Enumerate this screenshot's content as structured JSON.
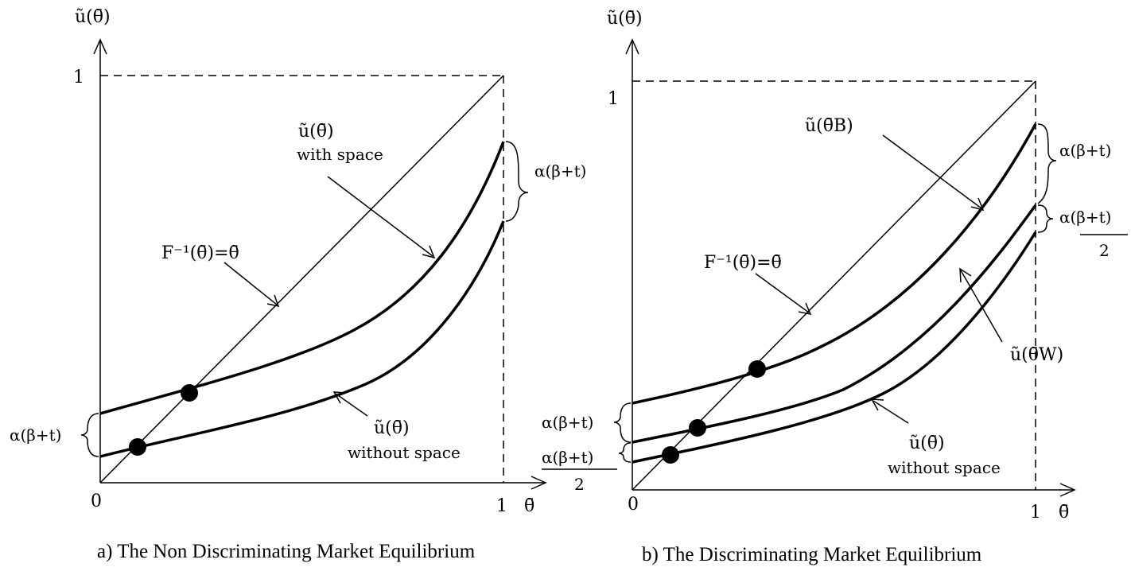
{
  "panel_a": {
    "y_axis_label": "ũ(θ̄)",
    "x_axis_label": "θ̄",
    "origin_label": "0",
    "x_one_label": "1",
    "y_one_label": "1",
    "diagonal_label": "F⁻¹(θ̄)=θ̄",
    "with_space_label": "ũ(θ̄)",
    "with_space_sub": "with space",
    "without_space_label": "ũ(θ̄)",
    "without_space_sub": "without space",
    "left_brace_label": "α(β+t)",
    "right_brace_label": "α(β+t)",
    "caption": "a) The Non Discriminating Market Equilibrium"
  },
  "panel_b": {
    "y_axis_label": "ũ(θ̄)",
    "x_axis_label": "θ̄",
    "origin_label": "0",
    "x_one_label": "1",
    "y_one_label": "1",
    "diagonal_label": "F⁻¹(θ̄)=θ̄",
    "top_curve_label": "ũ(θ̄B)",
    "middle_curve_label": "ũ(θ̄W)",
    "bottom_curve_label": "ũ(θ̄)",
    "bottom_curve_sub": "without space",
    "right_brace_top_label": "α(β+t)",
    "right_brace_mid_label": "α(β+t)",
    "right_brace_mid_denominator": "2",
    "left_brace_top_label": "α(β+t)",
    "left_brace_mid_label": "α(β+t)",
    "left_brace_mid_denominator": "2",
    "caption": "b) The Discriminating Market Equilibrium"
  }
}
